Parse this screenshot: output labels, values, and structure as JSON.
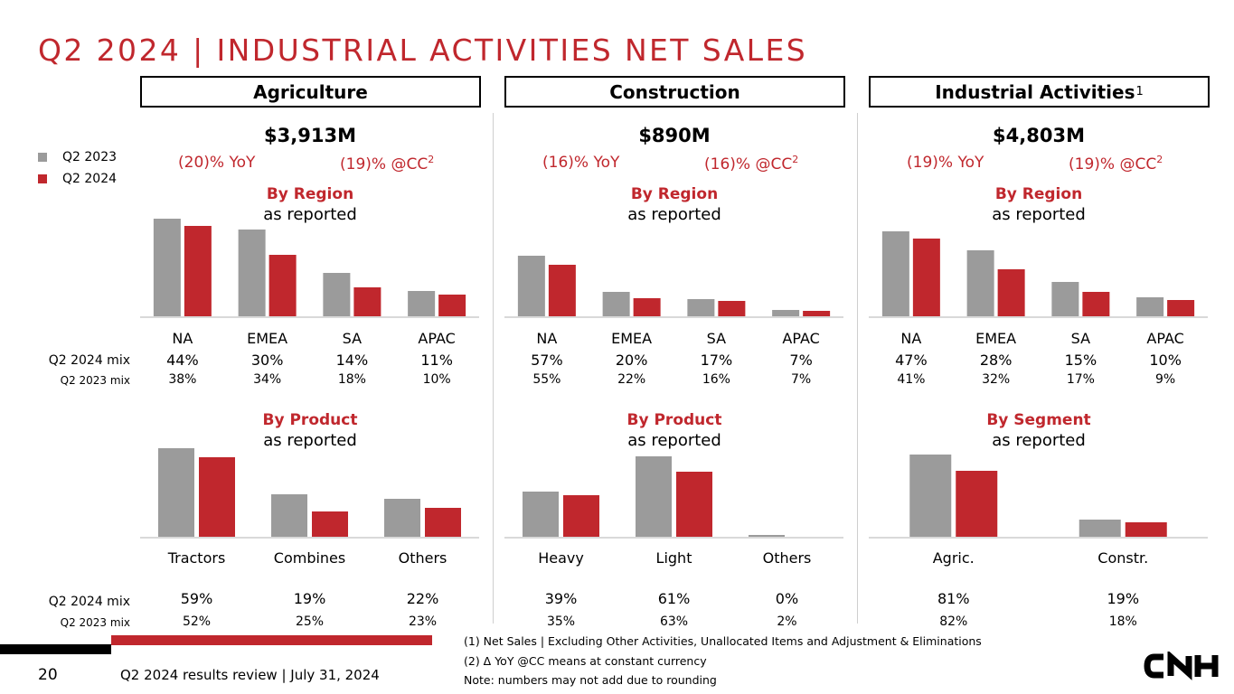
{
  "title": "Q2 2024 | INDUSTRIAL ACTIVITIES NET SALES",
  "colors": {
    "q2_2023": "#9b9b9b",
    "q2_2024": "#c0272d",
    "accent": "#c0272d",
    "baseline": "#d9d9d9"
  },
  "legend": [
    {
      "label": "Q2 2023",
      "color": "#9b9b9b"
    },
    {
      "label": "Q2 2024",
      "color": "#c0272d"
    }
  ],
  "row_labels": {
    "mix_2024": "Q2 2024 mix",
    "mix_2023": "Q2 2023 mix"
  },
  "segments": [
    {
      "header": "Agriculture",
      "header_sup": "",
      "total": "$3,913M",
      "yoy": "(20)% YoY",
      "cc": "(19)% @CC",
      "cc_sup": "2",
      "upper": {
        "title": "By Region",
        "subtitle": "as reported"
      },
      "lower": {
        "title": "By Product",
        "subtitle": "as reported"
      }
    },
    {
      "header": "Construction",
      "header_sup": "",
      "total": "$890M",
      "yoy": "(16)% YoY",
      "cc": "(16)% @CC",
      "cc_sup": "2",
      "upper": {
        "title": "By Region",
        "subtitle": "as reported"
      },
      "lower": {
        "title": "By Product",
        "subtitle": "as reported"
      }
    },
    {
      "header": "Industrial Activities",
      "header_sup": "1",
      "total": "$4,803M",
      "yoy": "(19)% YoY",
      "cc": "(19)% @CC",
      "cc_sup": "2",
      "upper": {
        "title": "By Region",
        "subtitle": "as reported"
      },
      "lower": {
        "title": "By Segment",
        "subtitle": "as reported"
      }
    }
  ],
  "chart_data": [
    {
      "type": "bar",
      "title": "Agriculture - By Region (as reported)",
      "categories": [
        "NA",
        "EMEA",
        "SA",
        "APAC"
      ],
      "series": [
        {
          "name": "Q2 2023",
          "values": [
            108,
            96,
            48,
            28
          ]
        },
        {
          "name": "Q2 2024",
          "values": [
            100,
            68,
            32,
            24
          ]
        }
      ],
      "value_note": "relative bar heights, unlabeled",
      "mix_2024": [
        "44%",
        "30%",
        "14%",
        "11%"
      ],
      "mix_2023": [
        "38%",
        "34%",
        "18%",
        "10%"
      ],
      "ylim": [
        0,
        110
      ]
    },
    {
      "type": "bar",
      "title": "Construction - By Region (as reported)",
      "categories": [
        "NA",
        "EMEA",
        "SA",
        "APAC"
      ],
      "series": [
        {
          "name": "Q2 2023",
          "values": [
            67,
            27,
            19,
            7
          ]
        },
        {
          "name": "Q2 2024",
          "values": [
            57,
            20,
            17,
            6
          ]
        }
      ],
      "value_note": "relative bar heights, unlabeled",
      "mix_2024": [
        "57%",
        "20%",
        "17%",
        "7%"
      ],
      "mix_2023": [
        "55%",
        "22%",
        "16%",
        "7%"
      ],
      "ylim": [
        0,
        110
      ]
    },
    {
      "type": "bar",
      "title": "Industrial Activities - By Region (as reported)",
      "categories": [
        "NA",
        "EMEA",
        "SA",
        "APAC"
      ],
      "series": [
        {
          "name": "Q2 2023",
          "values": [
            94,
            73,
            38,
            21
          ]
        },
        {
          "name": "Q2 2024",
          "values": [
            86,
            52,
            27,
            18
          ]
        }
      ],
      "value_note": "relative bar heights, unlabeled",
      "mix_2024": [
        "47%",
        "28%",
        "15%",
        "10%"
      ],
      "mix_2023": [
        "41%",
        "32%",
        "17%",
        "9%"
      ],
      "ylim": [
        0,
        110
      ]
    },
    {
      "type": "bar",
      "title": "Agriculture - By Product (as reported)",
      "categories": [
        "Tractors",
        "Combines",
        "Others"
      ],
      "series": [
        {
          "name": "Q2 2023",
          "values": [
            98,
            47,
            42
          ]
        },
        {
          "name": "Q2 2024",
          "values": [
            88,
            28,
            32
          ]
        }
      ],
      "value_note": "relative bar heights, unlabeled",
      "mix_2024": [
        "59%",
        "19%",
        "22%"
      ],
      "mix_2023": [
        "52%",
        "25%",
        "23%"
      ],
      "ylim": [
        0,
        100
      ]
    },
    {
      "type": "bar",
      "title": "Construction - By Product (as reported)",
      "categories": [
        "Heavy",
        "Light",
        "Others"
      ],
      "series": [
        {
          "name": "Q2 2023",
          "values": [
            50,
            89,
            2
          ]
        },
        {
          "name": "Q2 2024",
          "values": [
            46,
            72,
            0
          ]
        }
      ],
      "value_note": "relative bar heights, unlabeled",
      "mix_2024": [
        "39%",
        "61%",
        "0%"
      ],
      "mix_2023": [
        "35%",
        "63%",
        "2%"
      ],
      "ylim": [
        0,
        100
      ]
    },
    {
      "type": "bar",
      "title": "Industrial Activities - By Segment (as reported)",
      "categories": [
        "Agric.",
        "Constr."
      ],
      "series": [
        {
          "name": "Q2 2023",
          "values": [
            91,
            19
          ]
        },
        {
          "name": "Q2 2024",
          "values": [
            73,
            16
          ]
        }
      ],
      "value_note": "relative bar heights, unlabeled",
      "mix_2024": [
        "81%",
        "19%"
      ],
      "mix_2023": [
        "82%",
        "18%"
      ],
      "ylim": [
        0,
        100
      ]
    }
  ],
  "footnotes": [
    "(1) Net Sales | Excluding Other Activities, Unallocated Items and Adjustment & Eliminations",
    "(2) Δ YoY @CC means at constant currency",
    "Note: numbers may not add due to rounding"
  ],
  "footer": {
    "page_number": "20",
    "text": "Q2 2024 results review | July 31, 2024"
  },
  "logo": {
    "icon": "cnh-logo",
    "text": "CNH"
  }
}
